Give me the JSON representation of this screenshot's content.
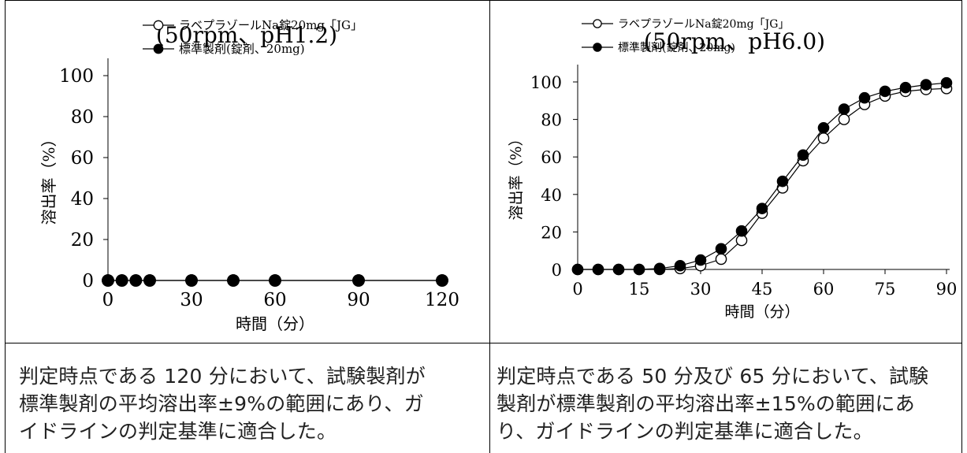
{
  "chart_data": [
    {
      "type": "line",
      "title": "(50rpm、pH1.2)",
      "xlabel": "時間（分）",
      "ylabel": "溶出率（%）",
      "xlim": [
        0,
        120
      ],
      "ylim": [
        0,
        100
      ],
      "xticks": [
        0,
        30,
        60,
        90,
        120
      ],
      "yticks": [
        0,
        20,
        40,
        60,
        80,
        100
      ],
      "legend": "top-left",
      "series": [
        {
          "name": "ラベプラゾールNa錠20mg「JG」",
          "marker": "open-circle",
          "x": [
            0,
            5,
            10,
            15,
            30,
            45,
            60,
            90,
            120
          ],
          "y": [
            0,
            0,
            0,
            0,
            0,
            0,
            0,
            0,
            0
          ]
        },
        {
          "name": "標準製剤(錠剤、20mg)",
          "marker": "filled-circle",
          "x": [
            0,
            5,
            10,
            15,
            30,
            45,
            60,
            90,
            120
          ],
          "y": [
            0,
            0,
            0,
            0,
            0,
            0,
            0,
            0,
            0
          ]
        }
      ]
    },
    {
      "type": "line",
      "title": "(50rpm、pH6.0)",
      "xlabel": "時間（分）",
      "ylabel": "溶出率（%）",
      "xlim": [
        0,
        90
      ],
      "ylim": [
        0,
        100
      ],
      "xticks": [
        0,
        15,
        30,
        45,
        60,
        75,
        90
      ],
      "yticks": [
        0,
        20,
        40,
        60,
        80,
        100
      ],
      "legend": "top-left",
      "series": [
        {
          "name": "ラベプラゾールNa錠20mg「JG」",
          "marker": "open-circle",
          "x": [
            0,
            5,
            10,
            15,
            20,
            25,
            30,
            35,
            40,
            45,
            50,
            55,
            60,
            65,
            70,
            75,
            80,
            85,
            90
          ],
          "y": [
            0,
            0,
            0,
            0,
            0,
            0.5,
            2,
            5.5,
            15.5,
            30,
            43.5,
            58,
            70,
            80,
            88,
            92.5,
            95,
            96,
            96.5
          ]
        },
        {
          "name": "標準製剤(錠剤、20mg)",
          "marker": "filled-circle",
          "x": [
            0,
            5,
            10,
            15,
            20,
            25,
            30,
            35,
            40,
            45,
            50,
            55,
            60,
            65,
            70,
            75,
            80,
            85,
            90
          ],
          "y": [
            0,
            0,
            0,
            0,
            0.5,
            2,
            5,
            11,
            20.5,
            32.5,
            47,
            61,
            75.5,
            85.5,
            91.5,
            95,
            97,
            98.5,
            99.5
          ]
        }
      ]
    }
  ],
  "texts": {
    "left_line1": "判定時点である 120 分において、試験製剤が",
    "left_line2": "標準製剤の平均溶出率±9%の範囲にあり、ガ",
    "left_line3": "イドラインの判定基準に適合した。",
    "right_line1": "判定時点である 50 分及び 65 分において、試験",
    "right_line2": "製剤が標準製剤の平均溶出率±15%の範囲にあ",
    "right_line3": "り、ガイドラインの判定基準に適合した。"
  }
}
